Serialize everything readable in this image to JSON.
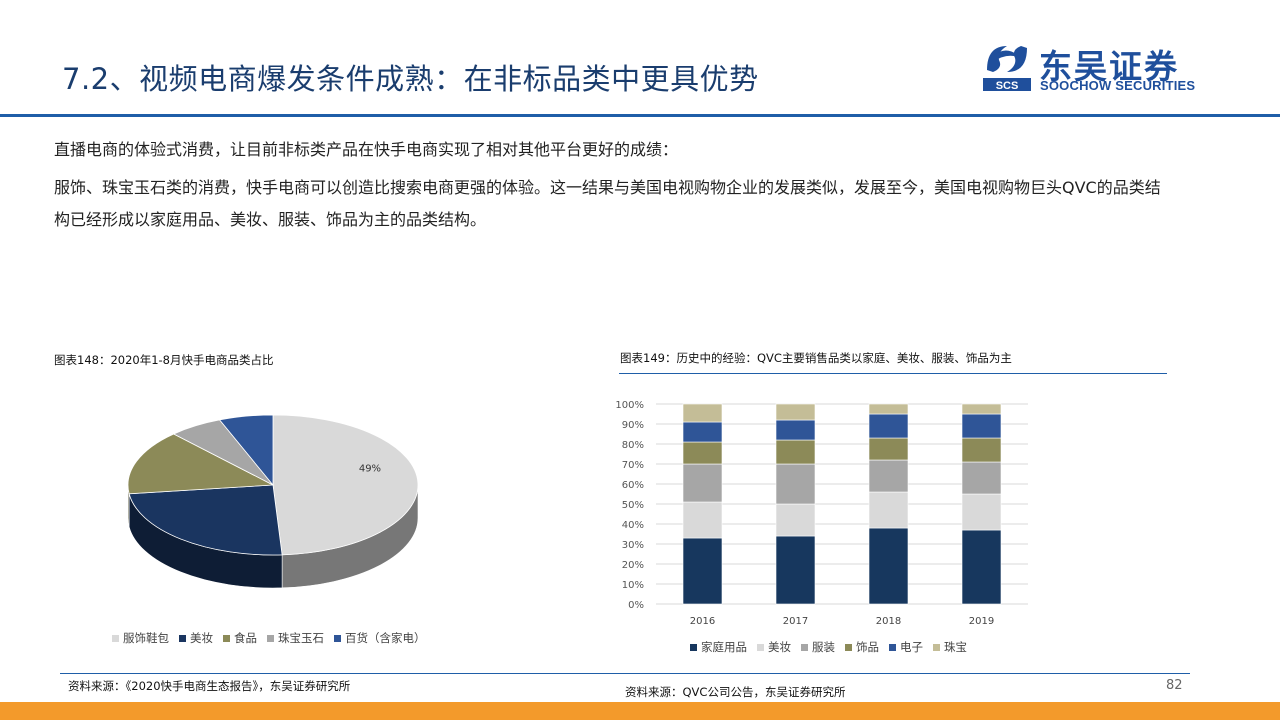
{
  "header": {
    "title": "7.2、视频电商爆发条件成熟：在非标品类中更具优势",
    "logo_cn": "东吴证券",
    "logo_en": "SOOCHOW SECURITIES",
    "logo_mark_text": "SCS"
  },
  "body": {
    "paragraph1": "直播电商的体验式消费，让目前非标类产品在快手电商实现了相对其他平台更好的成绩：",
    "paragraph2": "服饰、珠宝玉石类的消费，快手电商可以创造比搜索电商更强的体验。这一结果与美国电视购物企业的发展类似，发展至今，美国电视购物巨头QVC的品类结构已经形成以家庭用品、美妆、服装、饰品为主的品类结构。"
  },
  "figure1": {
    "caption": "图表148：2020年1-8月快手电商品类占比",
    "source": "资料来源：《2020快手电商生态报告》，东吴证券研究所"
  },
  "figure2": {
    "caption": "图表149：历史中的经验：QVC主要销售品类以家庭、美妆、服装、饰品为主",
    "source": "资料来源：QVC公司公告，东吴证券研究所"
  },
  "page_number": "82",
  "chart_data": [
    {
      "type": "pie",
      "labels": [
        "服饰鞋包",
        "美妆",
        "食品",
        "珠宝玉石",
        "百货（含家电）"
      ],
      "values": [
        49,
        24,
        15,
        6,
        6
      ],
      "data_labels": [
        "49%",
        "",
        "",
        "",
        ""
      ],
      "colors": [
        "#d9d9d9",
        "#1a3560",
        "#8c8a58",
        "#a6a6a6",
        "#2f5597"
      ],
      "style": "3d",
      "legend": "bottom"
    },
    {
      "type": "bar",
      "stacked": true,
      "categories": [
        "2016",
        "2017",
        "2018",
        "2019"
      ],
      "series": [
        {
          "name": "家庭用品",
          "values": [
            33,
            34,
            38,
            37
          ],
          "color": "#17375e"
        },
        {
          "name": "美妆",
          "values": [
            18,
            16,
            18,
            18
          ],
          "color": "#d9d9d9"
        },
        {
          "name": "服装",
          "values": [
            19,
            20,
            16,
            16
          ],
          "color": "#a6a6a6"
        },
        {
          "name": "饰品",
          "values": [
            11,
            12,
            11,
            12
          ],
          "color": "#8c8a58"
        },
        {
          "name": "电子",
          "values": [
            10,
            10,
            12,
            12
          ],
          "color": "#2f5597"
        },
        {
          "name": "珠宝",
          "values": [
            9,
            8,
            5,
            5
          ],
          "color": "#c4bd97"
        }
      ],
      "y_ticks": [
        "0%",
        "10%",
        "20%",
        "30%",
        "40%",
        "50%",
        "60%",
        "70%",
        "80%",
        "90%",
        "100%"
      ],
      "ylim": [
        0,
        100
      ],
      "grid": true,
      "legend": "bottom"
    }
  ]
}
